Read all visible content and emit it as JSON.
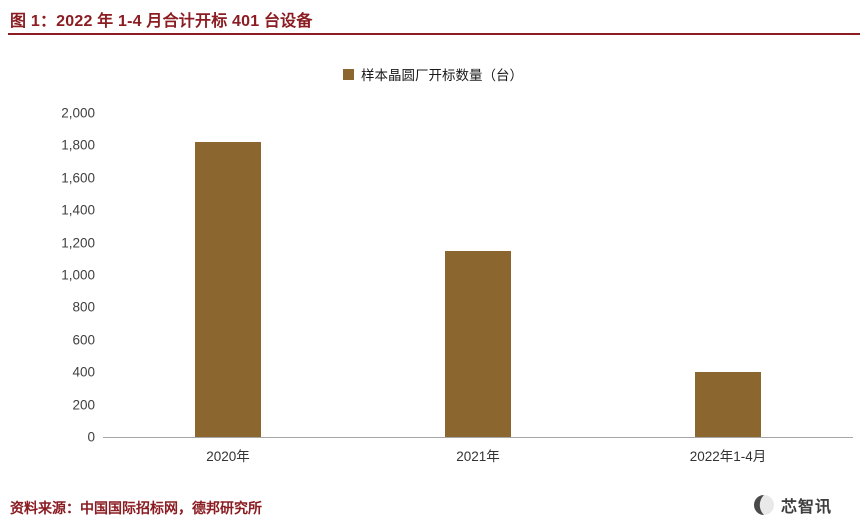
{
  "header": {
    "title": "图 1：2022 年 1-4 月合计开标 401 台设备"
  },
  "chart_data": {
    "type": "bar",
    "title": "2022 年 1-4 月合计开标 401 台设备",
    "legend": [
      "样本晶圆厂开标数量（台）"
    ],
    "legend_position": "top",
    "categories": [
      "2020年",
      "2021年",
      "2022年1-4月"
    ],
    "values": [
      1820,
      1150,
      401
    ],
    "xlabel": "",
    "ylabel": "",
    "ylim": [
      0,
      2000
    ],
    "ytick_step": 200,
    "grid": false,
    "bar_color": "#8B672F"
  },
  "footer": {
    "source": "资料来源：中国国际招标网，德邦研究所",
    "watermark": "芯智讯"
  },
  "colors": {
    "accent": "#8A1C22",
    "bar": "#8B672F",
    "axis_line": "#A6A6A6",
    "tick_text": "#404040"
  }
}
